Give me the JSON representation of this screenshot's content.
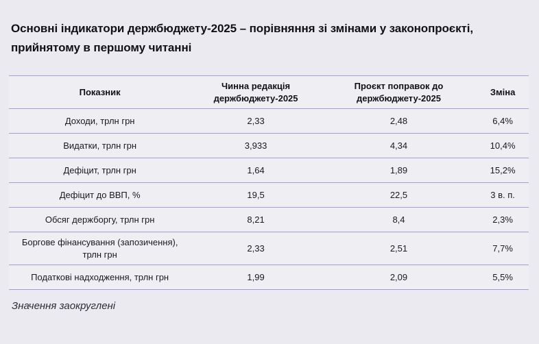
{
  "title": "Основні індикатори держбюджету-2025 – порівняння зі змінами у законопроєкті, прийнятому в першому читанні",
  "note": "Значення заокруглені",
  "colors": {
    "page_background": "#ebeaf0",
    "table_background": "#efeef3",
    "rule": "#a49cd2",
    "text": "#15151c"
  },
  "table": {
    "headers": {
      "indicator": "Показник",
      "current": "Чинна редакція держбюджету-2025",
      "proposed": "Проєкт поправок до держбюджету-2025",
      "change": "Зміна"
    },
    "rows": [
      {
        "label": "Доходи, трлн грн",
        "current": "2,33",
        "proposed": "2,48",
        "change": "6,4%"
      },
      {
        "label": "Видатки, трлн грн",
        "current": "3,933",
        "proposed": "4,34",
        "change": "10,4%"
      },
      {
        "label": "Дефіцит, трлн грн",
        "current": "1,64",
        "proposed": "1,89",
        "change": "15,2%"
      },
      {
        "label": "Дефіцит до ВВП, %",
        "current": "19,5",
        "proposed": "22,5",
        "change": "3 в. п."
      },
      {
        "label": "Обсяг держборгу, трлн грн",
        "current": "8,21",
        "proposed": "8,4",
        "change": "2,3%"
      },
      {
        "label": "Боргове фінансування (запозичення), трлн грн",
        "current": "2,33",
        "proposed": "2,51",
        "change": "7,7%"
      },
      {
        "label": "Податкові надходження, трлн грн",
        "current": "1,99",
        "proposed": "2,09",
        "change": "5,5%"
      }
    ]
  },
  "chart_data": {
    "type": "table",
    "title": "Основні індикатори держбюджету-2025 – порівняння зі змінами у законопроєкті, прийнятому в першому читанні",
    "categories": [
      "Доходи, трлн грн",
      "Видатки, трлн грн",
      "Дефіцит, трлн грн",
      "Дефіцит до ВВП, %",
      "Обсяг держборгу, трлн грн",
      "Боргове фінансування (запозичення), трлн грн",
      "Податкові надходження, трлн грн"
    ],
    "series": [
      {
        "name": "Чинна редакція держбюджету-2025",
        "values": [
          2.33,
          3.933,
          1.64,
          19.5,
          8.21,
          2.33,
          1.99
        ]
      },
      {
        "name": "Проєкт поправок до держбюджету-2025",
        "values": [
          2.48,
          4.34,
          1.89,
          22.5,
          8.4,
          2.51,
          2.09
        ]
      },
      {
        "name": "Зміна",
        "values": [
          "6,4%",
          "10,4%",
          "15,2%",
          "3 в. п.",
          "2,3%",
          "7,7%",
          "5,5%"
        ]
      }
    ],
    "footnote": "Значення заокруглені"
  }
}
